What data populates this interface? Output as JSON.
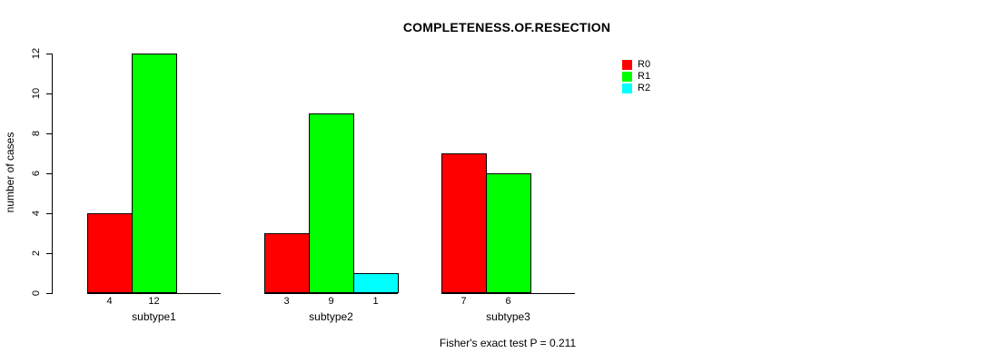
{
  "chart_data": {
    "type": "bar",
    "title": "COMPLETENESS.OF.RESECTION",
    "ylabel": "number of cases",
    "xlabel": "",
    "ylim": [
      0,
      12
    ],
    "yticks": [
      0,
      2,
      4,
      6,
      8,
      10,
      12
    ],
    "grid": false,
    "grouped": true,
    "categories": [
      "subtype1",
      "subtype2",
      "subtype3"
    ],
    "series": [
      {
        "name": "R0",
        "color": "#ff0000",
        "values": [
          4,
          3,
          7
        ]
      },
      {
        "name": "R1",
        "color": "#00ff00",
        "values": [
          12,
          9,
          6
        ]
      },
      {
        "name": "R2",
        "color": "#00ffff",
        "values": [
          null,
          1,
          null
        ]
      }
    ],
    "bar_value_labels_shown": true,
    "legend_position": "top-right",
    "annotation": "Fisher's exact test P = 0.211"
  },
  "colors": {
    "background": "#ffffff",
    "axis": "#000000",
    "text": "#000000",
    "bar_border": "#000000"
  }
}
